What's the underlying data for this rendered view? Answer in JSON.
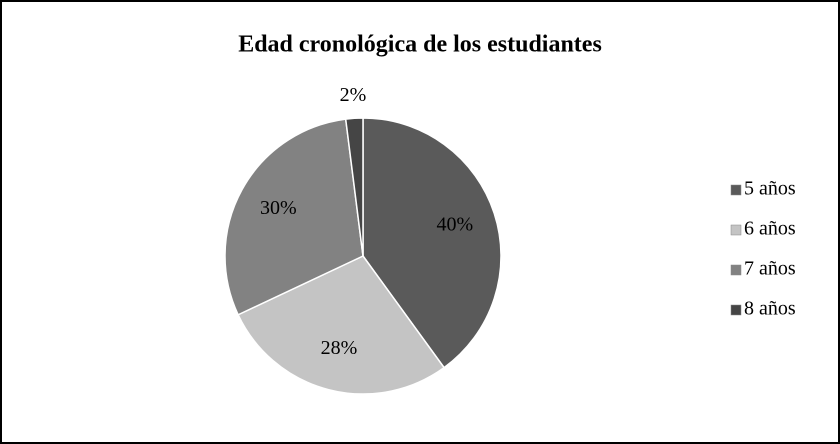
{
  "chart_data": {
    "type": "pie",
    "title": "Edad cronológica de los estudiantes",
    "categories": [
      "5 años",
      "6 años",
      "7 años",
      "8 años"
    ],
    "values": [
      40,
      28,
      30,
      2
    ],
    "value_labels": [
      "40%",
      "28%",
      "30%",
      "2%"
    ],
    "colors": [
      "#5a5a5a",
      "#c4c4c4",
      "#828282",
      "#454545"
    ],
    "legend": "right"
  }
}
